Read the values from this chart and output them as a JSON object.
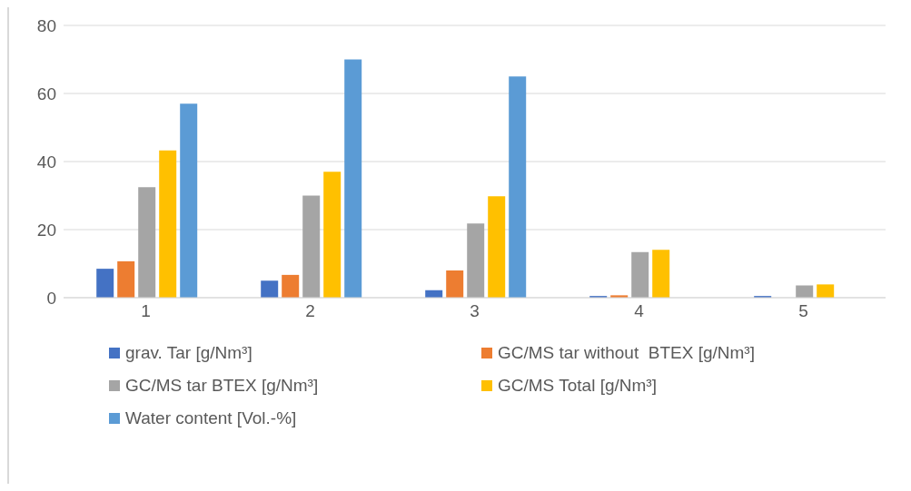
{
  "chart_data": {
    "type": "bar",
    "categories": [
      "1",
      "2",
      "3",
      "4",
      "5"
    ],
    "series": [
      {
        "name": "grav. Tar [g/Nm³]",
        "color": "#4472c4",
        "values": [
          8.5,
          5,
          2.2,
          0.5,
          0.5
        ]
      },
      {
        "name": "GC/MS tar without  BTEX [g/Nm³]",
        "color": "#ed7d31",
        "values": [
          10.7,
          6.7,
          8,
          0.7,
          null
        ]
      },
      {
        "name": "GC/MS tar BTEX [g/Nm³]",
        "color": "#a5a5a5",
        "values": [
          32.5,
          30,
          21.8,
          13.4,
          3.6
        ]
      },
      {
        "name": "GC/MS Total [g/Nm³]",
        "color": "#ffc000",
        "values": [
          43.3,
          37,
          29.8,
          14.1,
          3.9
        ]
      },
      {
        "name": "Water content [Vol.-%]",
        "color": "#5b9bd5",
        "values": [
          57,
          70,
          65,
          null,
          null
        ]
      }
    ],
    "ylim": [
      0,
      80
    ],
    "yticks": [
      0,
      20,
      40,
      60,
      80
    ],
    "grid": "y",
    "legend": "bottom"
  }
}
